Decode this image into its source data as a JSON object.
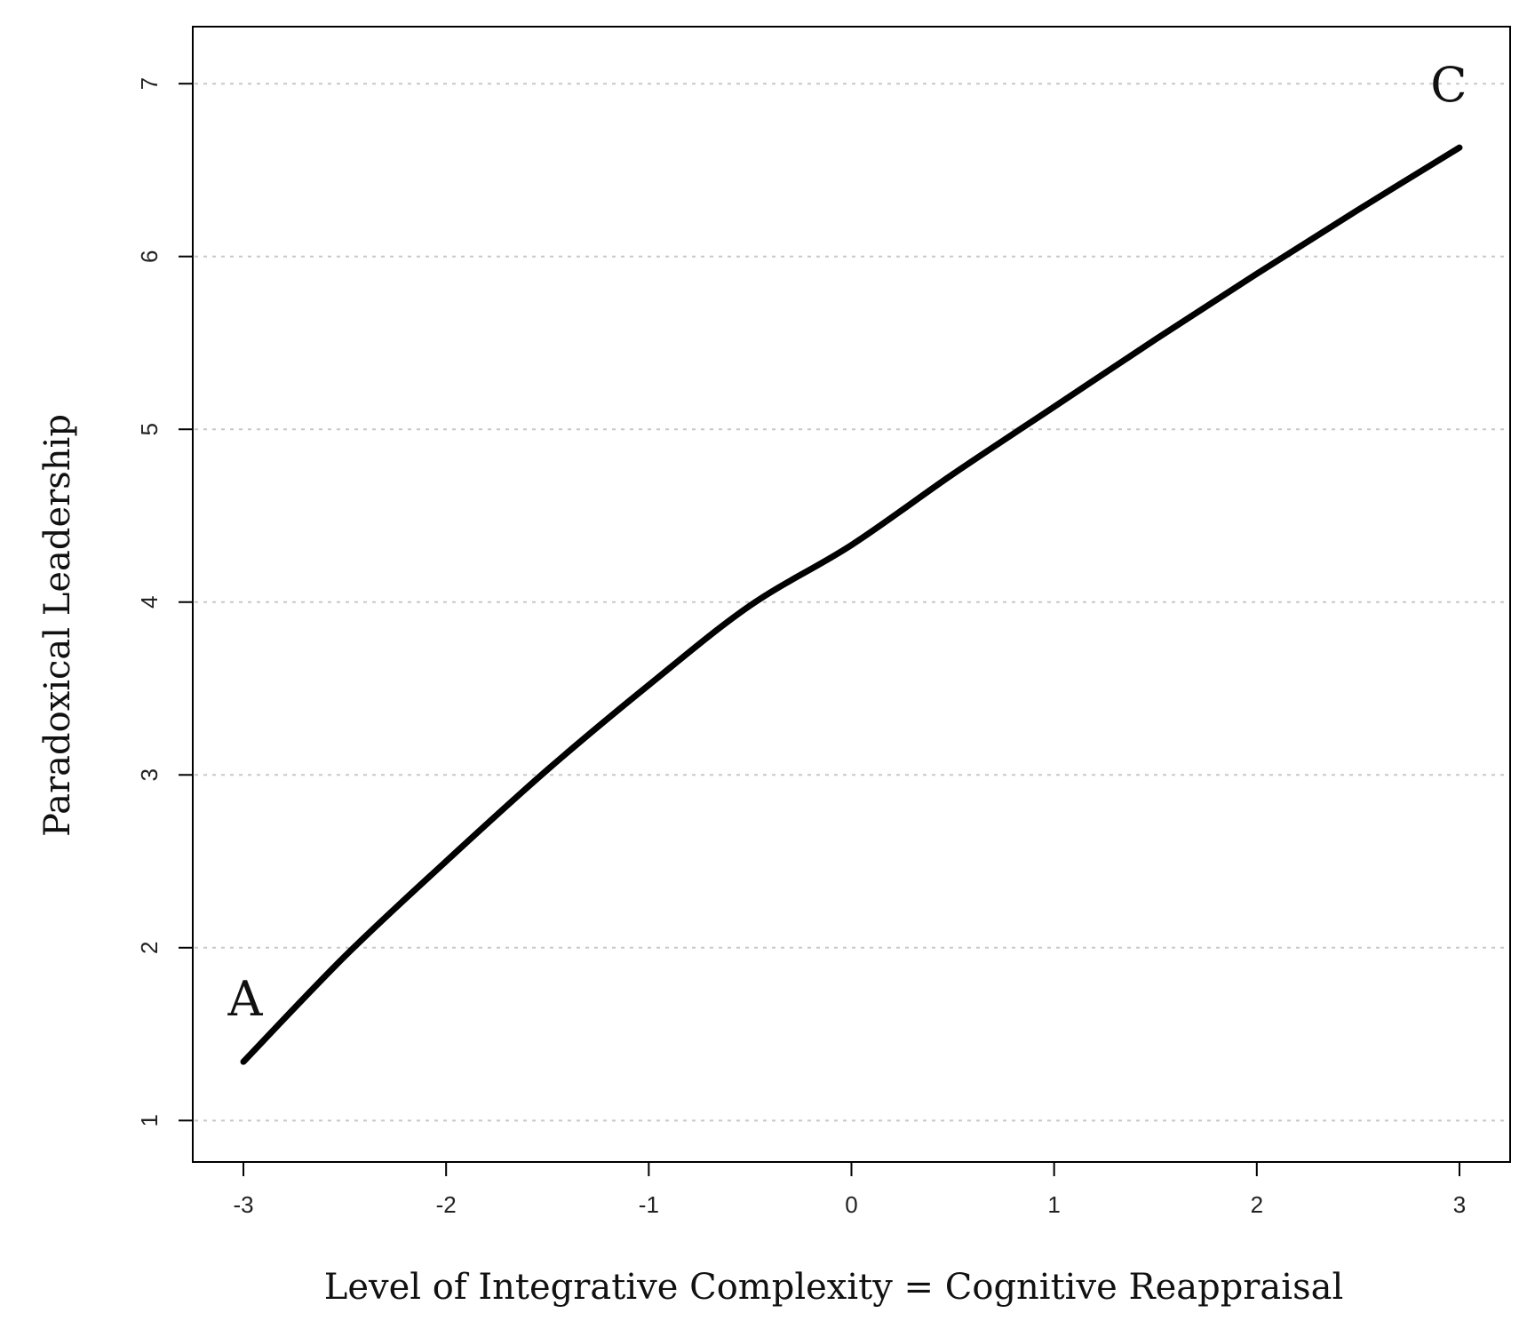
{
  "chart_data": {
    "type": "line",
    "title": "",
    "xlabel": "Level of Integrative Complexity = Cognitive Reappraisal",
    "ylabel": "Paradoxical Leadership",
    "xlim": [
      -3.25,
      3.25
    ],
    "ylim": [
      0.76,
      7.33
    ],
    "x_ticks": [
      -3,
      -2,
      -1,
      0,
      1,
      2,
      3
    ],
    "x_tick_labels": [
      "-3",
      "-2",
      "-1",
      "0",
      "1",
      "2",
      "3"
    ],
    "y_ticks": [
      1,
      2,
      3,
      4,
      5,
      6,
      7
    ],
    "y_tick_labels": [
      "1",
      "2",
      "3",
      "4",
      "5",
      "6",
      "7"
    ],
    "grid": {
      "horizontal": true,
      "style": "dotted"
    },
    "series": [
      {
        "color": "#000000",
        "x": [
          -3,
          -2.5,
          -2,
          -1.5,
          -1,
          -0.5,
          0,
          0.5,
          1,
          1.5,
          2,
          2.5,
          3
        ],
        "y": [
          1.34,
          1.95,
          2.5,
          3.03,
          3.52,
          3.98,
          4.33,
          4.74,
          5.13,
          5.52,
          5.9,
          6.27,
          6.63
        ]
      }
    ],
    "annotations": [
      {
        "text": "A",
        "x": -3,
        "y": 1.34,
        "position": "above-left"
      },
      {
        "text": "C",
        "x": 3,
        "y": 6.63,
        "position": "above-left"
      }
    ]
  }
}
